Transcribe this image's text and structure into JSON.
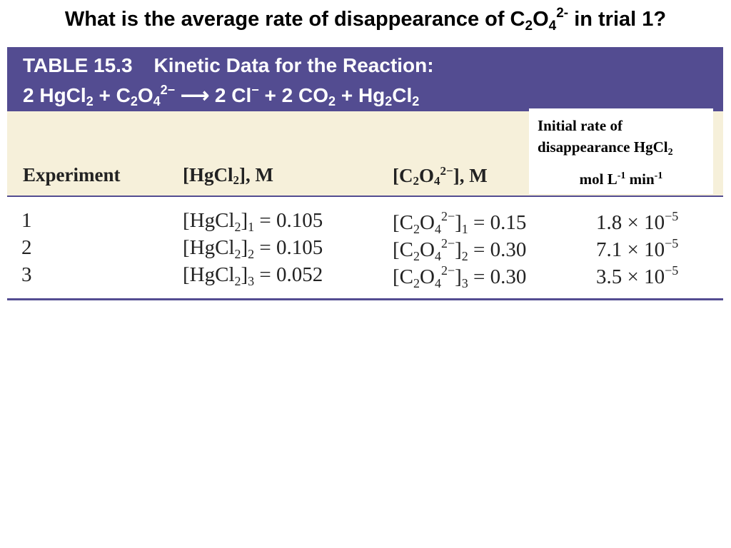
{
  "question": {
    "prefix": "What is the average rate of disappearance of C",
    "sub1": "2",
    "mid": "O",
    "sub2": "4",
    "sup": "2-",
    "suffix": " in trial 1?"
  },
  "banner": {
    "table_label": "TABLE 15.3",
    "table_title": "Kinetic Data for the Reaction:",
    "reaction": {
      "p1": "2 HgCl",
      "s1": "2",
      "p2": " + C",
      "s2": "2",
      "p3": "O",
      "s3": "4",
      "sup1": "2−",
      "p4": " ⟶ 2 Cl",
      "sup2": "−",
      "p5": " + 2 CO",
      "s4": "2",
      "p6": " + Hg",
      "s5": "2",
      "p7": "Cl",
      "s6": "2"
    }
  },
  "headers": {
    "experiment": "Experiment",
    "hgcl2": {
      "a": "[HgCl",
      "sub": "2",
      "b": "], M"
    },
    "c2o4": {
      "a": "[C",
      "sub1": "2",
      "b": "O",
      "sub2": "4",
      "sup": "2−",
      "c": "], M"
    }
  },
  "rate_box": {
    "line1": "Initial rate of",
    "line2a": "disappearance HgCl",
    "line2sub": "2",
    "line3a": "mol L",
    "line3sup1": "-1",
    "line3b": " min",
    "line3sup2": "-1"
  },
  "rows": [
    {
      "exp": "1",
      "hg_idx": "1",
      "hg_val": "= 0.105",
      "c_idx": "1",
      "c_val": "= 0.15",
      "rate_mant": "1.8 × 10",
      "rate_exp": "−5"
    },
    {
      "exp": "2",
      "hg_idx": "2",
      "hg_val": "= 0.105",
      "c_idx": "2",
      "c_val": "= 0.30",
      "rate_mant": "7.1 × 10",
      "rate_exp": "−5"
    },
    {
      "exp": "3",
      "hg_idx": "3",
      "hg_val": "= 0.052",
      "c_idx": "3",
      "c_val": "= 0.30",
      "rate_mant": "3.5 × 10",
      "rate_exp": "−5"
    }
  ],
  "colors": {
    "banner": "#534c91",
    "header_band": "#f6f0da",
    "rate_box": "#ffffff"
  }
}
